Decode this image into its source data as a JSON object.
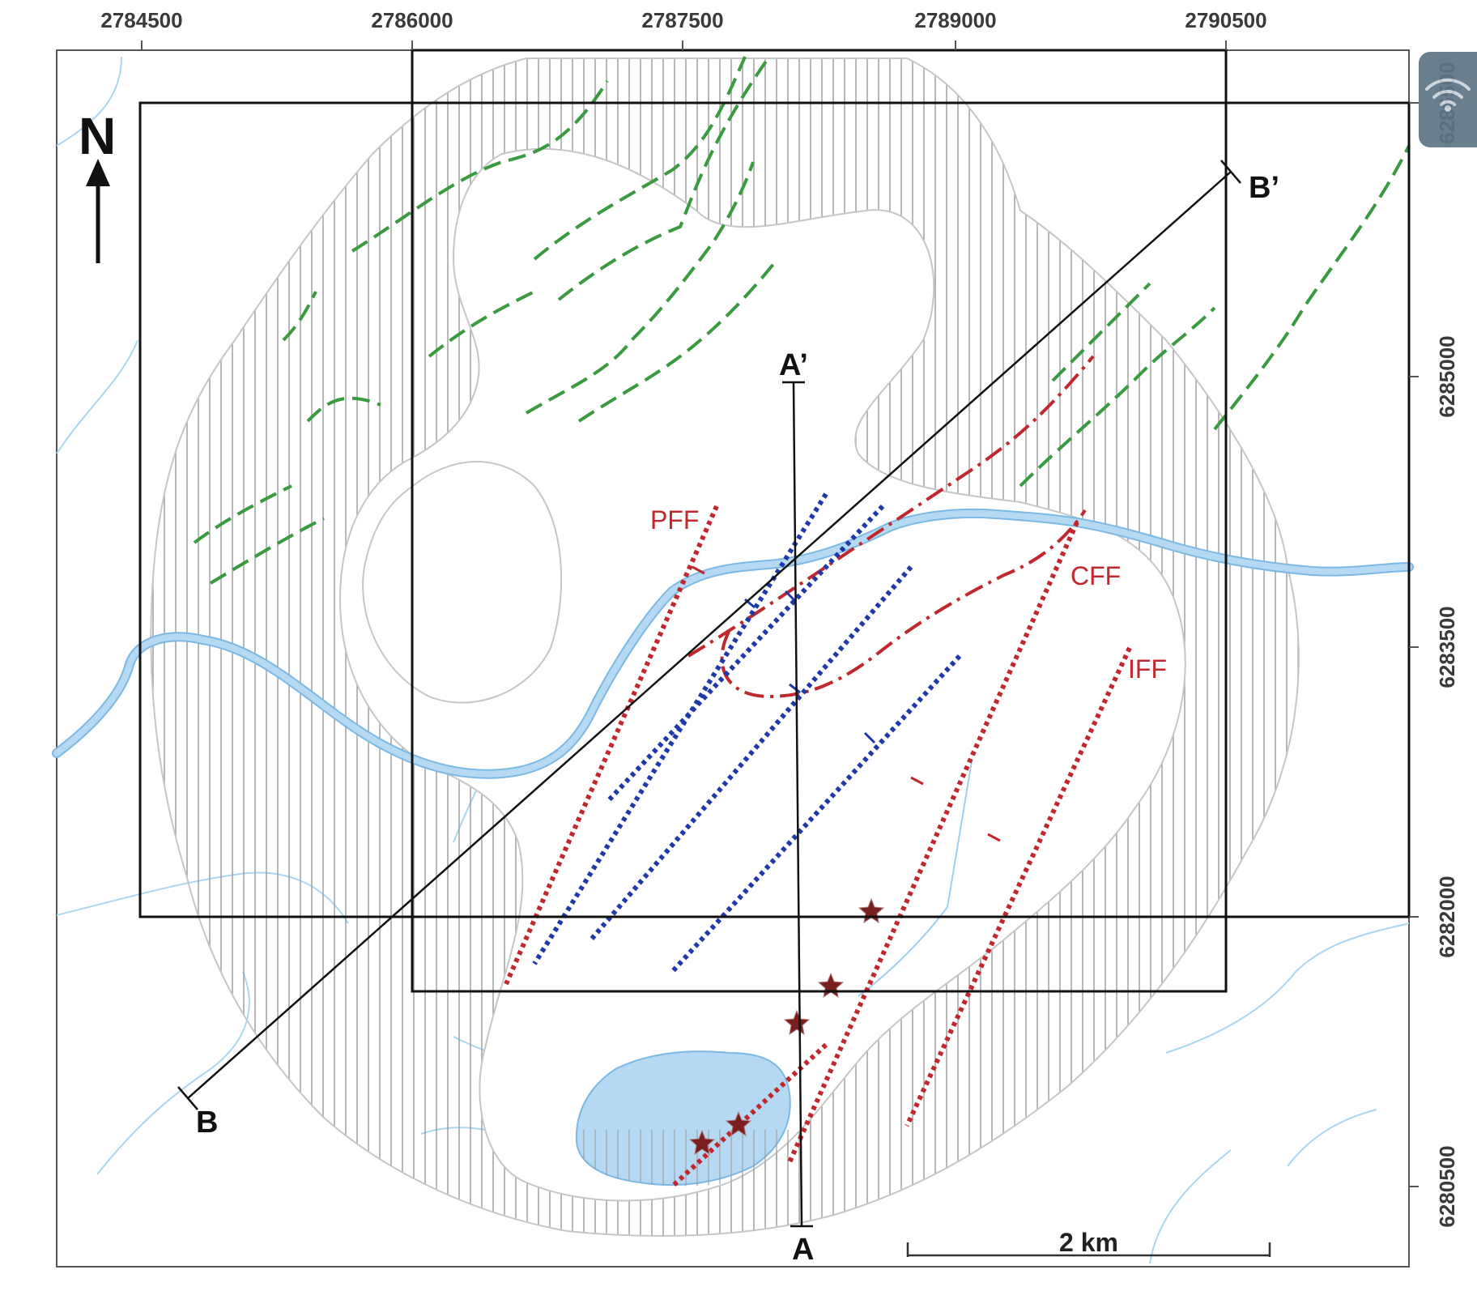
{
  "x_ticks": [
    "2784500",
    "2786000",
    "2787500",
    "2789000",
    "2790500"
  ],
  "y_ticks": [
    "6286500",
    "6285000",
    "6283500",
    "6282000",
    "6280500"
  ],
  "north_label": "N",
  "sections": {
    "a_start": "A",
    "a_end": "A’",
    "b_start": "B",
    "b_end": "B’"
  },
  "faults": {
    "pff": "PFF",
    "cff": "CFF",
    "iff": "IFF"
  },
  "scale_bar": {
    "label": "2 km"
  },
  "colors": {
    "water": "#b6d9f3",
    "water_edge": "#7cb8e4",
    "stream": "#9fd0ee",
    "hatch": "#9a9a9a",
    "outline": "#c6c6c6",
    "green_fault": "#3a9a3f",
    "red_fault": "#c0282d",
    "blue_fault": "#1f3aa8",
    "star": "#7a1f1f"
  },
  "icons": {
    "overlay_badge": "wifi-icon"
  }
}
